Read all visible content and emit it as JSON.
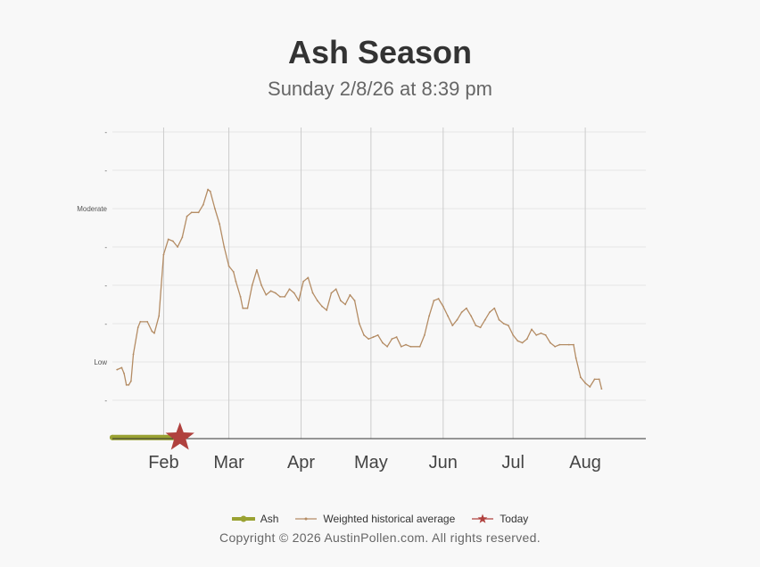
{
  "title": "Ash Season",
  "subtitle": "Sunday 2/8/26 at 8:39 pm",
  "copyright": "Copyright © 2026 AustinPollen.com.  All rights reserved.",
  "colors": {
    "ash": "#9aa232",
    "average": "#b48c64",
    "today": "#b0413e",
    "grid": "#cccccc",
    "axis": "#333333"
  },
  "legend": [
    {
      "label": "Ash",
      "icon": "ash-line-dot-icon"
    },
    {
      "label": "Weighted historical average",
      "icon": "average-line-icon"
    },
    {
      "label": "Today",
      "icon": "star-icon"
    }
  ],
  "chart_data": {
    "type": "line",
    "title": "Ash Season",
    "subtitle": "Sunday 2/8/26 at 8:39 pm",
    "xlabel": "",
    "ylabel": "",
    "x_range": [
      "2026-01-10",
      "2026-08-27"
    ],
    "y_range": [
      0,
      8
    ],
    "grid": true,
    "legend_position": "bottom",
    "x_ticks": [
      {
        "date": "2026-02-01",
        "label": "Feb"
      },
      {
        "date": "2026-03-01",
        "label": "Mar"
      },
      {
        "date": "2026-04-01",
        "label": "Apr"
      },
      {
        "date": "2026-05-01",
        "label": "May"
      },
      {
        "date": "2026-06-01",
        "label": "Jun"
      },
      {
        "date": "2026-07-01",
        "label": "Jul"
      },
      {
        "date": "2026-08-01",
        "label": "Aug"
      }
    ],
    "y_ticks": [
      {
        "value": 1,
        "label": "-"
      },
      {
        "value": 2,
        "label": "Low"
      },
      {
        "value": 3,
        "label": "-"
      },
      {
        "value": 4,
        "label": "-"
      },
      {
        "value": 5,
        "label": "-"
      },
      {
        "value": 6,
        "label": "Moderate"
      },
      {
        "value": 7,
        "label": "-"
      },
      {
        "value": 8,
        "label": "-"
      }
    ],
    "series": [
      {
        "name": "Weighted historical average",
        "points": [
          [
            "2026-01-12",
            1.8
          ],
          [
            "2026-01-14",
            1.85
          ],
          [
            "2026-01-15",
            1.7
          ],
          [
            "2026-01-16",
            1.4
          ],
          [
            "2026-01-17",
            1.4
          ],
          [
            "2026-01-18",
            1.5
          ],
          [
            "2026-01-19",
            2.2
          ],
          [
            "2026-01-21",
            2.9
          ],
          [
            "2026-01-22",
            3.05
          ],
          [
            "2026-01-25",
            3.05
          ],
          [
            "2026-01-27",
            2.8
          ],
          [
            "2026-01-28",
            2.75
          ],
          [
            "2026-01-30",
            3.2
          ],
          [
            "2026-02-01",
            4.8
          ],
          [
            "2026-02-03",
            5.2
          ],
          [
            "2026-02-05",
            5.15
          ],
          [
            "2026-02-07",
            5.0
          ],
          [
            "2026-02-09",
            5.25
          ],
          [
            "2026-02-11",
            5.8
          ],
          [
            "2026-02-13",
            5.9
          ],
          [
            "2026-02-16",
            5.9
          ],
          [
            "2026-02-18",
            6.1
          ],
          [
            "2026-02-20",
            6.5
          ],
          [
            "2026-02-21",
            6.45
          ],
          [
            "2026-02-23",
            6.0
          ],
          [
            "2026-02-25",
            5.6
          ],
          [
            "2026-02-27",
            5.0
          ],
          [
            "2026-03-01",
            4.5
          ],
          [
            "2026-03-03",
            4.35
          ],
          [
            "2026-03-04",
            4.1
          ],
          [
            "2026-03-06",
            3.7
          ],
          [
            "2026-03-07",
            3.4
          ],
          [
            "2026-03-09",
            3.4
          ],
          [
            "2026-03-11",
            4.0
          ],
          [
            "2026-03-13",
            4.4
          ],
          [
            "2026-03-15",
            4.0
          ],
          [
            "2026-03-17",
            3.75
          ],
          [
            "2026-03-19",
            3.85
          ],
          [
            "2026-03-21",
            3.8
          ],
          [
            "2026-03-23",
            3.7
          ],
          [
            "2026-03-25",
            3.7
          ],
          [
            "2026-03-27",
            3.9
          ],
          [
            "2026-03-29",
            3.8
          ],
          [
            "2026-03-31",
            3.6
          ],
          [
            "2026-04-02",
            4.1
          ],
          [
            "2026-04-04",
            4.2
          ],
          [
            "2026-04-06",
            3.8
          ],
          [
            "2026-04-08",
            3.6
          ],
          [
            "2026-04-10",
            3.45
          ],
          [
            "2026-04-12",
            3.35
          ],
          [
            "2026-04-14",
            3.8
          ],
          [
            "2026-04-16",
            3.9
          ],
          [
            "2026-04-18",
            3.6
          ],
          [
            "2026-04-20",
            3.5
          ],
          [
            "2026-04-22",
            3.75
          ],
          [
            "2026-04-24",
            3.6
          ],
          [
            "2026-04-26",
            3.0
          ],
          [
            "2026-04-28",
            2.7
          ],
          [
            "2026-04-30",
            2.6
          ],
          [
            "2026-05-02",
            2.65
          ],
          [
            "2026-05-04",
            2.7
          ],
          [
            "2026-05-06",
            2.5
          ],
          [
            "2026-05-08",
            2.4
          ],
          [
            "2026-05-10",
            2.6
          ],
          [
            "2026-05-12",
            2.65
          ],
          [
            "2026-05-14",
            2.4
          ],
          [
            "2026-05-16",
            2.45
          ],
          [
            "2026-05-18",
            2.4
          ],
          [
            "2026-05-22",
            2.4
          ],
          [
            "2026-05-24",
            2.7
          ],
          [
            "2026-05-26",
            3.2
          ],
          [
            "2026-05-28",
            3.6
          ],
          [
            "2026-05-30",
            3.65
          ],
          [
            "2026-06-01",
            3.45
          ],
          [
            "2026-06-03",
            3.2
          ],
          [
            "2026-06-05",
            2.95
          ],
          [
            "2026-06-07",
            3.1
          ],
          [
            "2026-06-09",
            3.3
          ],
          [
            "2026-06-11",
            3.4
          ],
          [
            "2026-06-13",
            3.2
          ],
          [
            "2026-06-15",
            2.95
          ],
          [
            "2026-06-17",
            2.9
          ],
          [
            "2026-06-19",
            3.1
          ],
          [
            "2026-06-21",
            3.3
          ],
          [
            "2026-06-23",
            3.4
          ],
          [
            "2026-06-25",
            3.1
          ],
          [
            "2026-06-27",
            3.0
          ],
          [
            "2026-06-29",
            2.95
          ],
          [
            "2026-07-01",
            2.7
          ],
          [
            "2026-07-03",
            2.55
          ],
          [
            "2026-07-05",
            2.5
          ],
          [
            "2026-07-07",
            2.6
          ],
          [
            "2026-07-09",
            2.85
          ],
          [
            "2026-07-11",
            2.7
          ],
          [
            "2026-07-13",
            2.75
          ],
          [
            "2026-07-15",
            2.7
          ],
          [
            "2026-07-17",
            2.5
          ],
          [
            "2026-07-19",
            2.4
          ],
          [
            "2026-07-21",
            2.45
          ],
          [
            "2026-07-25",
            2.45
          ],
          [
            "2026-07-27",
            2.45
          ],
          [
            "2026-07-28",
            2.1
          ],
          [
            "2026-07-30",
            1.6
          ],
          [
            "2026-08-01",
            1.45
          ],
          [
            "2026-08-03",
            1.35
          ],
          [
            "2026-08-05",
            1.55
          ],
          [
            "2026-08-07",
            1.55
          ],
          [
            "2026-08-08",
            1.3
          ]
        ]
      },
      {
        "name": "Ash",
        "points": [
          [
            "2026-01-10",
            0.03
          ],
          [
            "2026-02-08",
            0.03
          ]
        ]
      }
    ],
    "today": {
      "date": "2026-02-08",
      "value": 0.03
    }
  }
}
